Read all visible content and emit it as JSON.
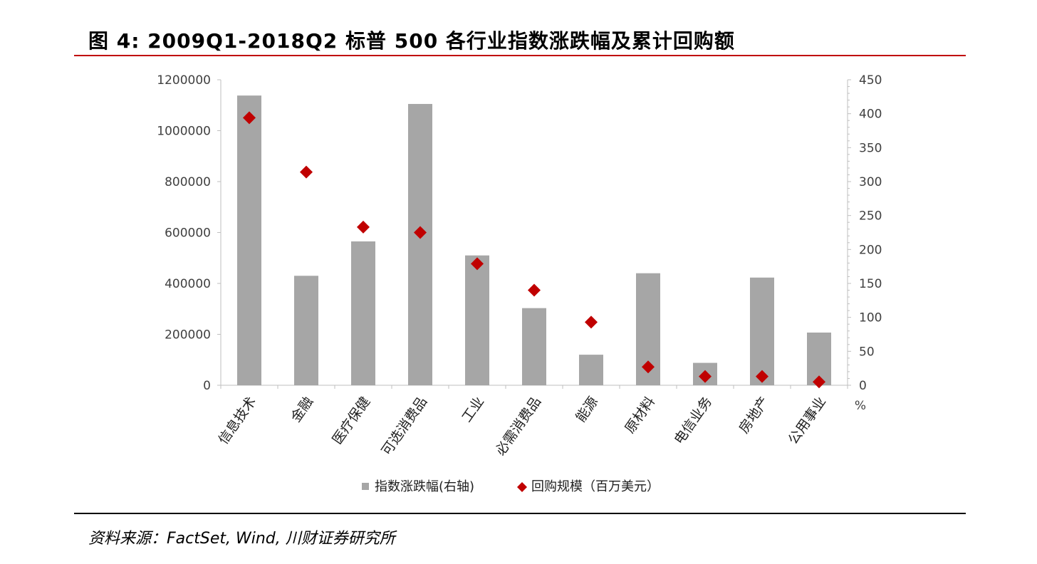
{
  "header": {
    "title": "图 4:  2009Q1-2018Q2 标普 500 各行业指数涨跌幅及累计回购额"
  },
  "footer": {
    "source": "资料来源：FactSet, Wind,  川财证券研究所"
  },
  "colors": {
    "title_rule": "#c00000",
    "bar": "#a6a6a6",
    "marker": "#c00000",
    "axis": "#bfbfbf",
    "text": "#404040"
  },
  "chart_data": {
    "type": "bar",
    "categories": [
      "信息技术",
      "金融",
      "医疗保健",
      "可选消费品",
      "工业",
      "必需消费品",
      "能源",
      "原材料",
      "电信业务",
      "房地产",
      "公用事业"
    ],
    "series": [
      {
        "name": "指数涨跌幅(右轴)",
        "kind": "bar",
        "axis": "left",
        "values": [
          1138000,
          430000,
          565000,
          1105000,
          510000,
          303000,
          120000,
          440000,
          88000,
          423000,
          207000
        ]
      },
      {
        "name": "回购规模（百万美元）",
        "kind": "diamond",
        "axis": "right",
        "values": [
          394,
          314,
          233,
          225,
          179,
          140,
          93,
          27,
          13,
          13,
          5
        ]
      }
    ],
    "y_left": {
      "ylim": [
        0,
        1200000
      ],
      "ticks": [
        0,
        200000,
        400000,
        600000,
        800000,
        1000000,
        1200000
      ]
    },
    "y_right": {
      "ylim": [
        0,
        450
      ],
      "ticks": [
        0,
        50,
        100,
        150,
        200,
        250,
        300,
        350,
        400,
        450
      ],
      "unit": "%"
    },
    "legend_position": "bottom",
    "grid": false
  }
}
